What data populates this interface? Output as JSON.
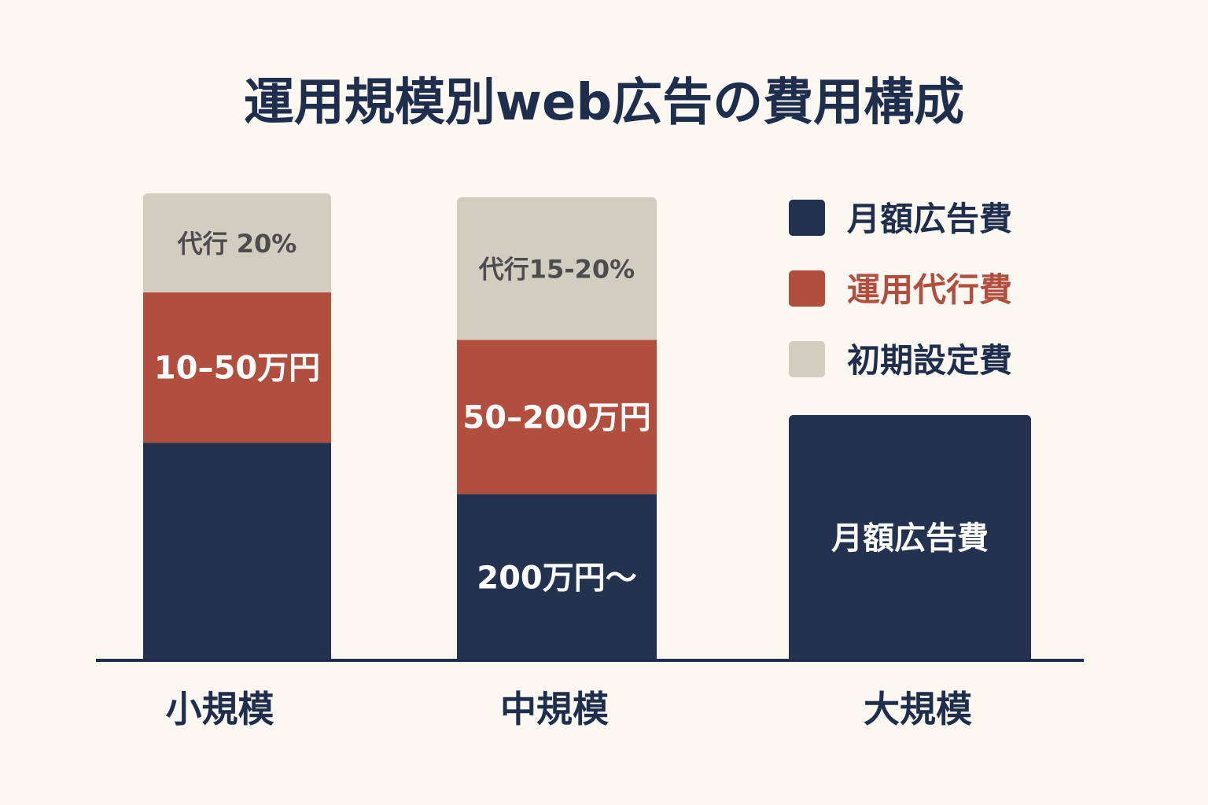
{
  "chart_data": {
    "type": "bar",
    "stacked": true,
    "title": "運用規模別web広告の費用構成",
    "categories": [
      "小規模",
      "中規模",
      "大規模"
    ],
    "legend": {
      "position": "right",
      "entries": [
        {
          "name": "月額広告費",
          "color": "#22324f"
        },
        {
          "name": "運用代行費",
          "color": "#b24e3e"
        },
        {
          "name": "初期設定費",
          "color": "#d1cdc1"
        }
      ]
    },
    "series": [
      {
        "name": "月額広告費",
        "color": "#22324f",
        "values": [
          55,
          42,
          62
        ],
        "labels": [
          "",
          "200万円〜",
          "月額広告費"
        ]
      },
      {
        "name": "運用代行費",
        "color": "#b24e3e",
        "values": [
          38,
          39,
          0
        ],
        "labels": [
          "10–50万円",
          "50–200万円",
          ""
        ]
      },
      {
        "name": "初期設定費",
        "color": "#d1cdc1",
        "values": [
          25,
          36,
          0
        ],
        "labels": [
          "代行 20%",
          "代行15-20%",
          ""
        ]
      }
    ],
    "ylim": [
      0,
      118
    ],
    "grid": false
  }
}
